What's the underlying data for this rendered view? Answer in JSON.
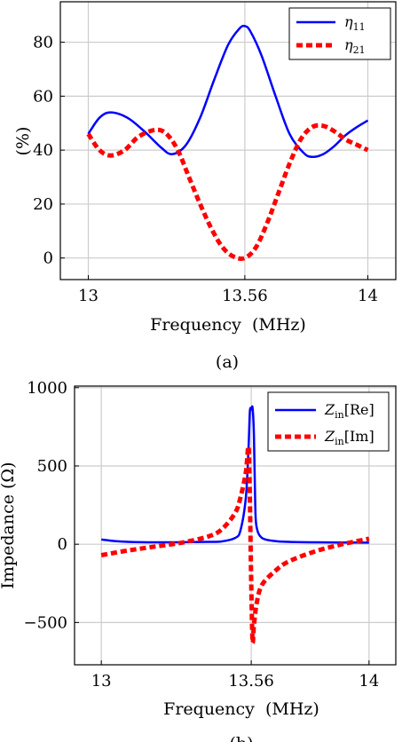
{
  "chart_data": [
    {
      "type": "line",
      "caption": "(a)",
      "xlabel": "Frequency  (MHz)",
      "ylabel": "(%)",
      "xlim": [
        12.9,
        14.1
      ],
      "ylim": [
        -8,
        95
      ],
      "xticks": [
        13,
        13.56,
        14
      ],
      "xtick_labels": [
        "13",
        "13.56",
        "14"
      ],
      "yticks": [
        0,
        20,
        40,
        60,
        80
      ],
      "ytick_labels": [
        "0",
        "20",
        "40",
        "60",
        "80"
      ],
      "grid": true,
      "legend_position": "top-right",
      "series": [
        {
          "name": "η11",
          "legend_symbol": "η",
          "legend_subscript": "11",
          "color": "#0000ff",
          "dash": "solid",
          "x": [
            13.0,
            13.04,
            13.08,
            13.14,
            13.2,
            13.26,
            13.3,
            13.35,
            13.4,
            13.45,
            13.5,
            13.54,
            13.56,
            13.58,
            13.62,
            13.67,
            13.72,
            13.77,
            13.8,
            13.84,
            13.88,
            13.92,
            13.96,
            14.0
          ],
          "y": [
            46,
            52,
            54,
            52,
            47,
            41,
            38.5,
            42,
            52,
            66,
            79,
            85,
            86,
            84,
            75,
            60,
            46,
            39,
            37.5,
            38.5,
            41.5,
            45.5,
            48.5,
            51
          ]
        },
        {
          "name": "η21",
          "legend_symbol": "η",
          "legend_subscript": "21",
          "color": "#ff0000",
          "dash": "dashed",
          "x": [
            13.0,
            13.04,
            13.08,
            13.13,
            13.18,
            13.24,
            13.28,
            13.32,
            13.36,
            13.4,
            13.44,
            13.48,
            13.52,
            13.56,
            13.6,
            13.64,
            13.68,
            13.72,
            13.76,
            13.8,
            13.84,
            13.88,
            13.92,
            13.96,
            14.0
          ],
          "y": [
            46,
            40,
            38,
            40,
            45,
            47.5,
            46,
            40,
            30,
            20,
            11,
            4,
            0.5,
            0,
            4,
            13,
            24,
            35,
            44,
            48.5,
            49,
            47,
            44,
            42,
            40
          ]
        }
      ]
    },
    {
      "type": "line",
      "caption": "(b)",
      "xlabel": "Frequency  (MHz)",
      "ylabel": "Impedance (Ω)",
      "xlim": [
        12.9,
        14.1
      ],
      "ylim": [
        -770,
        1010
      ],
      "xticks": [
        13,
        13.56,
        14
      ],
      "xtick_labels": [
        "13",
        "13.56",
        "14"
      ],
      "yticks": [
        -500,
        0,
        500,
        1000
      ],
      "ytick_labels": [
        "−500",
        "0",
        "500",
        "1000"
      ],
      "grid": true,
      "legend_position": "top-right",
      "series": [
        {
          "name": "Zin[Re]",
          "legend_symbol": "Z",
          "legend_subscript": "in",
          "legend_bracket": "[Re]",
          "color": "#0000ff",
          "dash": "solid",
          "x": [
            13.0,
            13.05,
            13.1,
            13.2,
            13.3,
            13.4,
            13.45,
            13.5,
            13.52,
            13.54,
            13.55,
            13.555,
            13.56,
            13.565,
            13.57,
            13.575,
            13.58,
            13.6,
            13.65,
            13.7,
            13.8,
            13.9,
            14.0
          ],
          "y": [
            30,
            20,
            15,
            12,
            13,
            15,
            18,
            40,
            90,
            300,
            620,
            850,
            860,
            870,
            700,
            250,
            110,
            40,
            20,
            15,
            12,
            11,
            10
          ]
        },
        {
          "name": "Zin[Im]",
          "legend_symbol": "Z",
          "legend_subscript": "in",
          "legend_bracket": "[Im]",
          "color": "#ff0000",
          "dash": "dashed",
          "x": [
            13.0,
            13.1,
            13.2,
            13.3,
            13.4,
            13.45,
            13.5,
            13.52,
            13.54,
            13.55,
            13.555,
            13.56,
            13.565,
            13.57,
            13.58,
            13.6,
            13.65,
            13.7,
            13.8,
            13.9,
            14.0
          ],
          "y": [
            -70,
            -40,
            -15,
            10,
            50,
            95,
            200,
            300,
            460,
            620,
            280,
            -250,
            -620,
            -520,
            -380,
            -260,
            -170,
            -110,
            -45,
            0,
            35
          ]
        }
      ]
    }
  ]
}
